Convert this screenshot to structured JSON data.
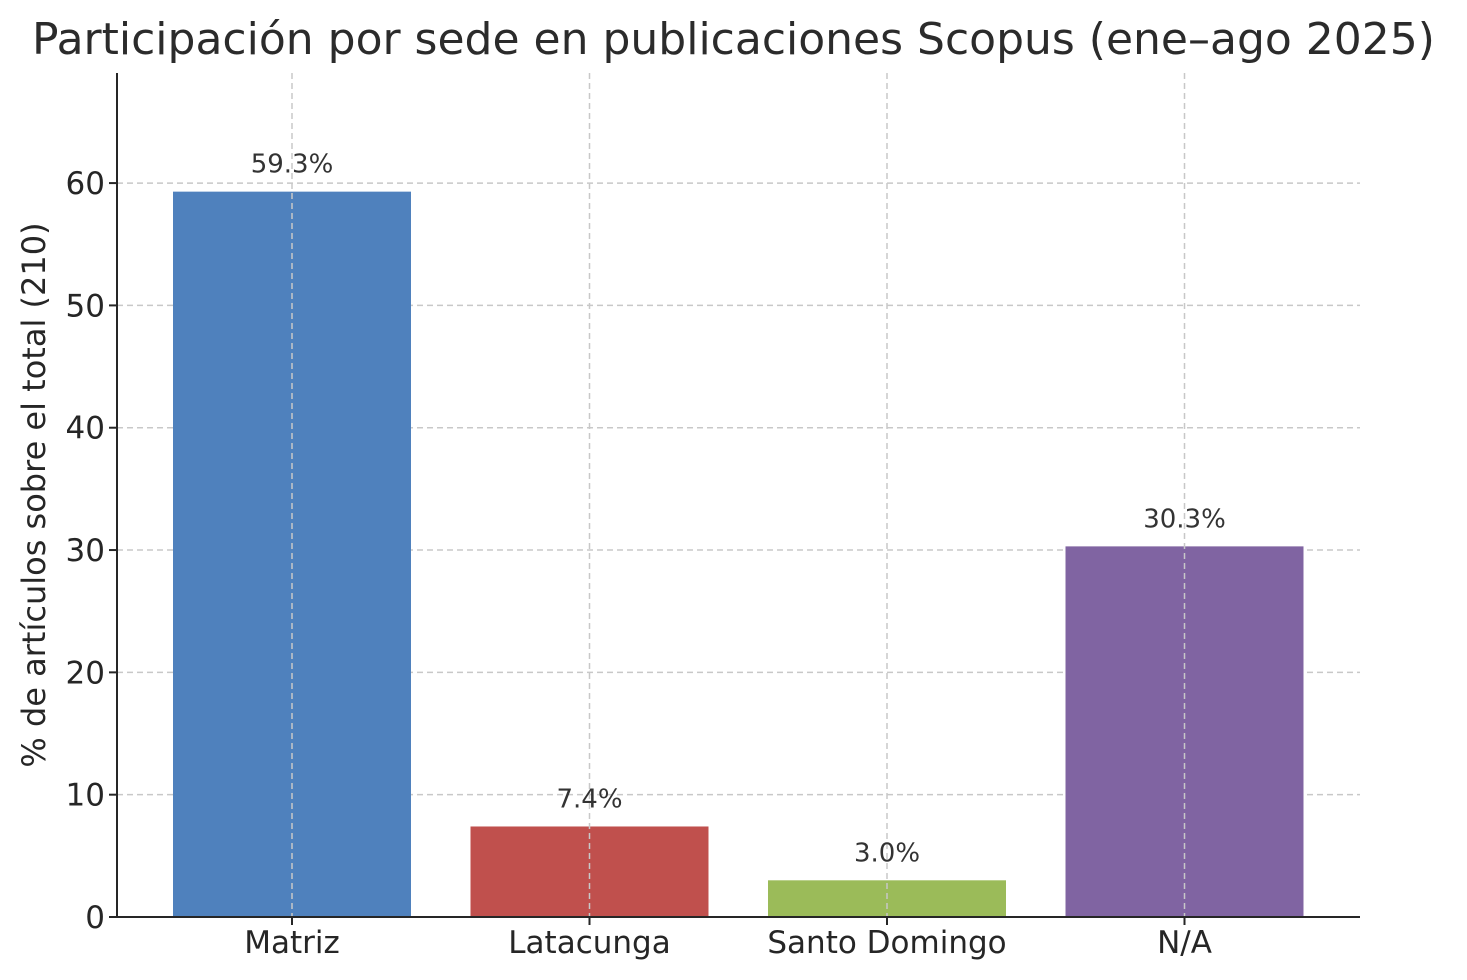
{
  "chart_data": {
    "type": "bar",
    "title": "Participación por sede en publicaciones Scopus (ene–ago 2025)",
    "xlabel": "",
    "ylabel": "% de artículos sobre el total (210)",
    "categories": [
      "Matriz",
      "Latacunga",
      "Santo Domingo",
      "N/A"
    ],
    "values": [
      59.3,
      7.4,
      3.0,
      30.3
    ],
    "value_labels": [
      "59.3%",
      "7.4%",
      "3.0%",
      "30.3%"
    ],
    "colors": [
      "#4f81bd",
      "#c0504d",
      "#9bbb59",
      "#8064a2"
    ],
    "ylim": [
      0,
      69
    ],
    "yticks": [
      0,
      10,
      20,
      30,
      40,
      50,
      60
    ],
    "grid": true
  }
}
